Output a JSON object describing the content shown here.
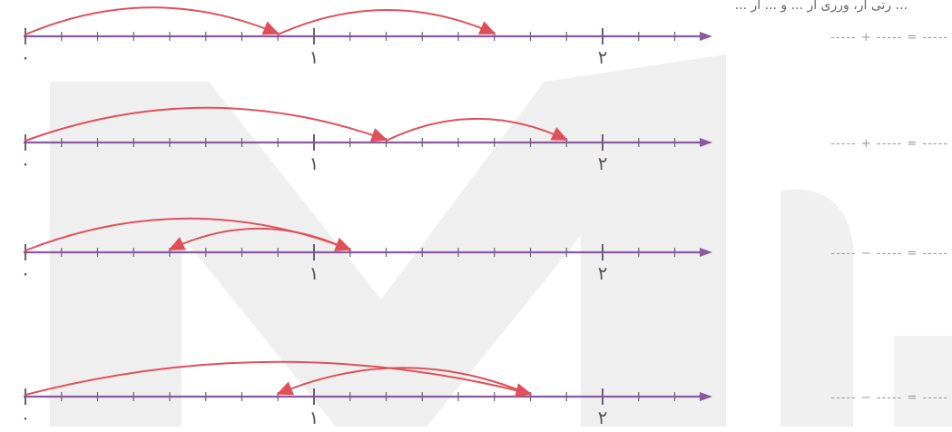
{
  "header": {
    "text": "... رتی ار، ورری ار ... و ... ار ..."
  },
  "colors": {
    "axis": "#8a5aa0",
    "tick": "#6e5a7a",
    "arrow": "#e0505a",
    "watermark": "#e6e6e6",
    "label": "#555555",
    "blank": "#9a9aa8"
  },
  "number_lines": [
    {
      "name": "line-1",
      "labels": [
        "۰",
        "۱",
        "۲"
      ],
      "equation": {
        "left": "-----",
        "op": "+",
        "right": "-----",
        "eq": "=",
        "result": "-----"
      },
      "jumps": [
        {
          "from": 0,
          "to": 0.875
        },
        {
          "from": 0.875,
          "to": 1.625
        }
      ]
    },
    {
      "name": "line-2",
      "labels": [
        "۰",
        "۱",
        "۲"
      ],
      "equation": {
        "left": "-----",
        "op": "+",
        "right": "-----",
        "eq": "=",
        "result": "-----"
      },
      "jumps": [
        {
          "from": 0,
          "to": 1.25
        },
        {
          "from": 1.25,
          "to": 1.875
        }
      ]
    },
    {
      "name": "line-3",
      "labels": [
        "۰",
        "۱",
        "۲"
      ],
      "equation": {
        "left": "-----",
        "op": "−",
        "right": "-----",
        "eq": "=",
        "result": "-----"
      },
      "jumps": [
        {
          "from": 0,
          "to": 1.125
        },
        {
          "from": 1.125,
          "to": 0.5
        }
      ]
    },
    {
      "name": "line-4",
      "labels": [
        "۰",
        "۱",
        "۲"
      ],
      "equation": {
        "left": "-----",
        "op": "−",
        "right": "-----",
        "eq": "=",
        "result": "-----"
      },
      "jumps": [
        {
          "from": 0,
          "to": 1.75
        },
        {
          "from": 1.75,
          "to": 0.875
        }
      ]
    }
  ]
}
